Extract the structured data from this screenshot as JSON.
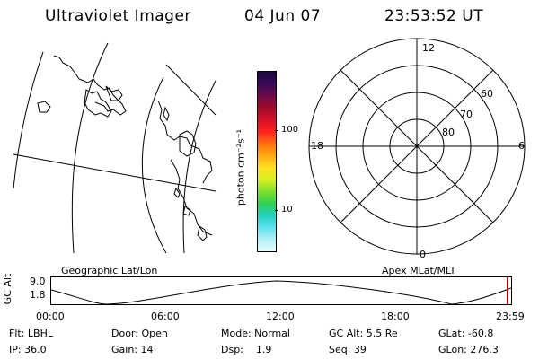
{
  "header": {
    "title": "Ultraviolet Imager",
    "date": "04 Jun 07",
    "time": "23:53:52 UT"
  },
  "colorbar": {
    "unit_label": "photon cm⁻²s⁻¹",
    "ticks": [
      "100",
      "10"
    ],
    "colors": [
      "#1a0a3a",
      "#3a0a5a",
      "#6a0a4a",
      "#a00a2a",
      "#d4102a",
      "#ff2020",
      "#ff7010",
      "#ffaa10",
      "#ffe020",
      "#d8f020",
      "#80e030",
      "#30d050",
      "#20d0c0",
      "#60e0f0",
      "#b0f0f8",
      "#e8fcfc"
    ]
  },
  "geo_panel": {
    "label": "Geographic Lat/Lon"
  },
  "polar_plot": {
    "label": "Apex MLat/MLT",
    "mlt_labels": [
      "12",
      "18",
      "6",
      "0"
    ],
    "mlat_labels": [
      "60",
      "70",
      "80"
    ]
  },
  "altitude_plot": {
    "ylabel": "GC Alt",
    "yticks": [
      "9.0",
      "1.8"
    ],
    "xticks": [
      "00:00",
      "06:00",
      "12:00",
      "18:00",
      "23:59"
    ]
  },
  "status": {
    "filter": "Flt: LBHL",
    "ip": "IP: 36.0",
    "door": "Door: Open",
    "gain": "Gain: 14",
    "mode": "Mode: Normal",
    "dsp": "Dsp:    1.9",
    "gc_alt": "GC Alt: 5.5 Re",
    "seq": "Seq: 39",
    "glat": "GLat: -60.8",
    "glon": "GLon: 276.3"
  }
}
